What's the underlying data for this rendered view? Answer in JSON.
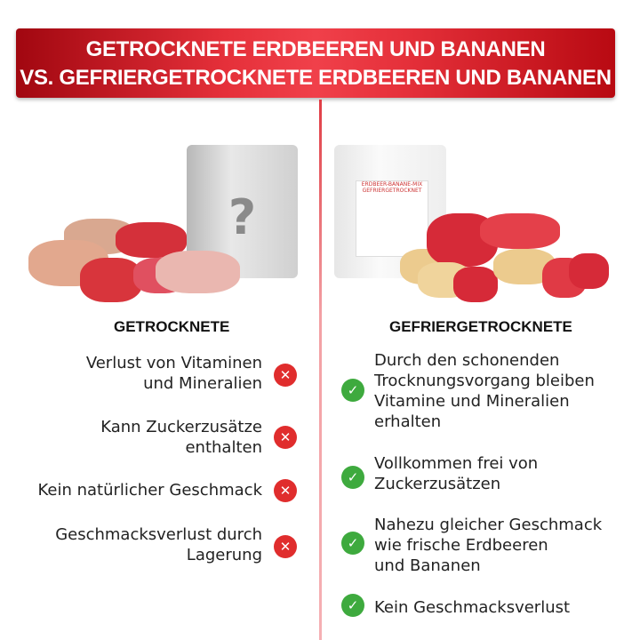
{
  "header": {
    "line1": "GETROCKNETE ERDBEEREN UND BANANEN",
    "line2": "VS. GEFRIERGETROCKNETE ERDBEEREN UND BANANEN"
  },
  "left": {
    "heading": "GETROCKNETE",
    "bag_mark": "?",
    "items": [
      {
        "line1": "Verlust von Vitaminen",
        "line2": "und Mineralien"
      },
      {
        "line1": "Kann Zuckerzusätze",
        "line2": "enthalten"
      },
      {
        "line1": "Kein natürlicher Geschmack",
        "line2": ""
      },
      {
        "line1": "Geschmacksverlust durch",
        "line2": "Lagerung"
      }
    ]
  },
  "right": {
    "heading": "GEFRIERGETROCKNETE",
    "bag_label": "ERDBEER-BANANE-MIX GEFRIERGETROCKNET",
    "items": [
      {
        "lines": [
          "Durch den schonenden",
          "Trocknungsvorgang bleiben",
          "Vitamine und Mineralien",
          "erhalten"
        ]
      },
      {
        "lines": [
          "Vollkommen frei von",
          "Zuckerzusätzen"
        ]
      },
      {
        "lines": [
          "Nahezu gleicher Geschmack",
          "wie frische Erdbeeren",
          "und Bananen"
        ]
      },
      {
        "lines": [
          "Kein Geschmacksverlust"
        ]
      }
    ]
  },
  "colors": {
    "accent": "#d9232d",
    "negative": "#e02d2d",
    "positive": "#3eaa3e"
  },
  "icons": {
    "negative": "x-circle-icon",
    "positive": "check-circle-icon"
  }
}
